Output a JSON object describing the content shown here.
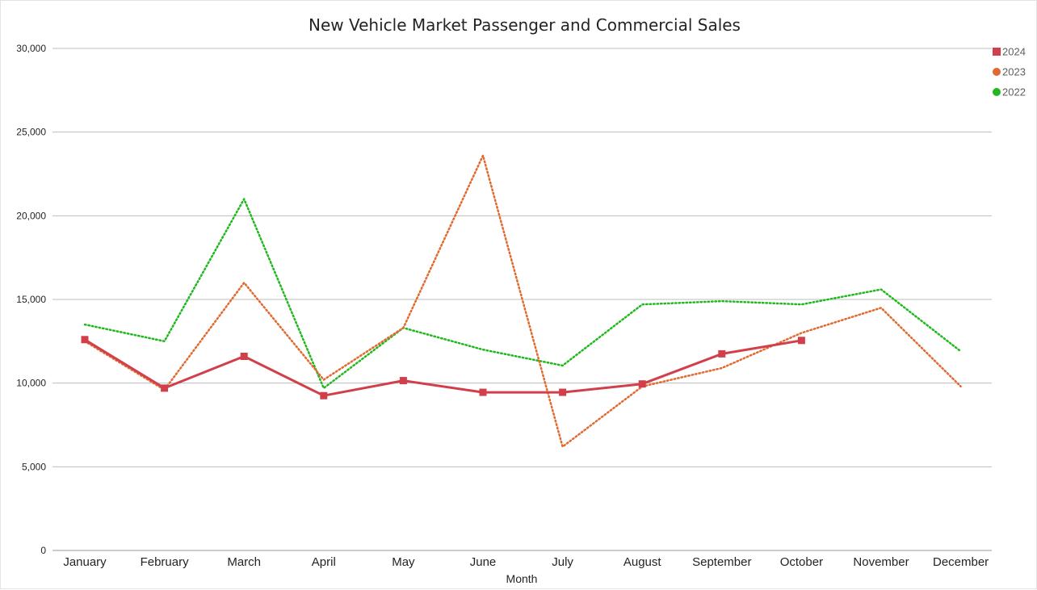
{
  "chart_data": {
    "type": "line",
    "title": "New Vehicle Market Passenger and Commercial Sales",
    "xlabel": "Month",
    "ylabel": "",
    "ylim": [
      0,
      30000
    ],
    "yticks": [
      0,
      5000,
      10000,
      15000,
      20000,
      25000,
      30000
    ],
    "ytick_labels": [
      "0",
      "5,000",
      "10,000",
      "15,000",
      "20,000",
      "25,000",
      "30,000"
    ],
    "grid": true,
    "legend_position": "top-right",
    "categories": [
      "January",
      "February",
      "March",
      "April",
      "May",
      "June",
      "July",
      "August",
      "September",
      "October",
      "November",
      "December"
    ],
    "series": [
      {
        "name": "2024",
        "color": "#d1404a",
        "style": "solid",
        "marker": "square",
        "values": [
          12600,
          9700,
          11600,
          9250,
          10150,
          9450,
          9450,
          9950,
          11750,
          12550,
          null,
          null
        ]
      },
      {
        "name": "2023",
        "color": "#e06a30",
        "style": "dotted",
        "marker": "circle",
        "values": [
          12500,
          9600,
          16000,
          10200,
          13300,
          23600,
          6200,
          9800,
          10900,
          13000,
          14500,
          9800
        ]
      },
      {
        "name": "2022",
        "color": "#20b81e",
        "style": "dotted",
        "marker": "circle",
        "values": [
          13500,
          12500,
          21000,
          9700,
          13300,
          12000,
          11050,
          14700,
          14900,
          14700,
          15600,
          11900
        ]
      }
    ]
  }
}
